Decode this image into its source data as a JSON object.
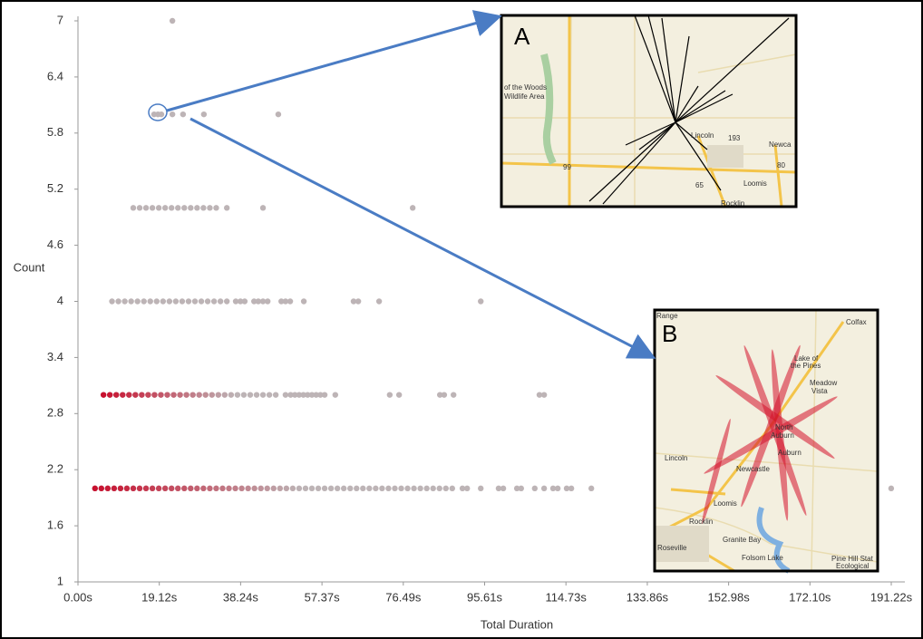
{
  "chart_data": {
    "type": "scatter",
    "x_label": "Total Duration",
    "y_label": "Count",
    "xlim": [
      0,
      191.22
    ],
    "ylim": [
      1,
      7
    ],
    "xticks": [
      {
        "value": 0,
        "label": "0.00s"
      },
      {
        "value": 19.12,
        "label": "19.12s"
      },
      {
        "value": 38.24,
        "label": "38.24s"
      },
      {
        "value": 57.37,
        "label": "57.37s"
      },
      {
        "value": 76.49,
        "label": "76.49s"
      },
      {
        "value": 95.61,
        "label": "95.61s"
      },
      {
        "value": 114.73,
        "label": "114.73s"
      },
      {
        "value": 133.86,
        "label": "133.86s"
      },
      {
        "value": 152.98,
        "label": "152.98s"
      },
      {
        "value": 172.1,
        "label": "172.10s"
      },
      {
        "value": 191.22,
        "label": "191.22s"
      }
    ],
    "yticks": [
      1,
      1.6,
      2.2,
      2.8,
      3.4,
      4,
      4.6,
      5.2,
      5.8,
      6.4,
      7
    ],
    "color": "#bdb4b6",
    "accent_color": "#c8102e",
    "series": [
      {
        "accent": true,
        "x": [
          4,
          5.5,
          7,
          8.5,
          10,
          11.5,
          13,
          14.5,
          16,
          17.5,
          19,
          20.5,
          22,
          23.5,
          25,
          26.5,
          28,
          29.5,
          31,
          32.5,
          34,
          35.5,
          37,
          38.5,
          40,
          41.5,
          43,
          44.5,
          46,
          47.5,
          49,
          50.5,
          52,
          53.5,
          55,
          56.5,
          58,
          59.5,
          61,
          62.5,
          64,
          65.5,
          67,
          68.5,
          70,
          71.5,
          73,
          74.5,
          76,
          77.5,
          79,
          80.5,
          82,
          83.5,
          85,
          86.5,
          88,
          90.4,
          91.5,
          94.7,
          98.9,
          100,
          103.2,
          104.2,
          107.4,
          109.6,
          111.7,
          112.8,
          114.9,
          116,
          120.7,
          191.2
        ],
        "values": [
          2,
          2,
          2,
          2,
          2,
          2,
          2,
          2,
          2,
          2,
          2,
          2,
          2,
          2,
          2,
          2,
          2,
          2,
          2,
          2,
          2,
          2,
          2,
          2,
          2,
          2,
          2,
          2,
          2,
          2,
          2,
          2,
          2,
          2,
          2,
          2,
          2,
          2,
          2,
          2,
          2,
          2,
          2,
          2,
          2,
          2,
          2,
          2,
          2,
          2,
          2,
          2,
          2,
          2,
          2,
          2,
          2,
          2,
          2,
          2,
          2,
          2,
          2,
          2,
          2,
          2,
          2,
          2,
          2,
          2,
          2,
          2
        ]
      },
      {
        "accent": true,
        "x": [
          6,
          7.5,
          9,
          10.5,
          12,
          13.5,
          15,
          16.5,
          18,
          19.5,
          21,
          22.5,
          24,
          25.5,
          27,
          28.5,
          30,
          31.5,
          33,
          34.5,
          36,
          37.5,
          39,
          40.5,
          42,
          43.5,
          45,
          46.5,
          48.8,
          50,
          51,
          52,
          53,
          54,
          55,
          56,
          57,
          58,
          60.5,
          73.3,
          75.5,
          85.1,
          86.1,
          88.3,
          108.5,
          109.6
        ],
        "values": [
          3,
          3,
          3,
          3,
          3,
          3,
          3,
          3,
          3,
          3,
          3,
          3,
          3,
          3,
          3,
          3,
          3,
          3,
          3,
          3,
          3,
          3,
          3,
          3,
          3,
          3,
          3,
          3,
          3,
          3,
          3,
          3,
          3,
          3,
          3,
          3,
          3,
          3,
          3,
          3,
          3,
          3,
          3,
          3,
          3,
          3
        ]
      },
      {
        "accent": false,
        "x": [
          8,
          9.5,
          11,
          12.5,
          14,
          15.5,
          17,
          18.5,
          20,
          21.5,
          23,
          24.5,
          26,
          27.5,
          29,
          30.5,
          32,
          33.5,
          35,
          37.1,
          38.2,
          39.2,
          41.4,
          42.4,
          43.5,
          44.6,
          47.8,
          48.8,
          49.9,
          53.1,
          64.8,
          65.9,
          70.8,
          94.7
        ],
        "values": [
          4,
          4,
          4,
          4,
          4,
          4,
          4,
          4,
          4,
          4,
          4,
          4,
          4,
          4,
          4,
          4,
          4,
          4,
          4,
          4,
          4,
          4,
          4,
          4,
          4,
          4,
          4,
          4,
          4,
          4,
          4,
          4,
          4,
          4
        ]
      },
      {
        "accent": false,
        "x": [
          13,
          14.5,
          16,
          17.5,
          19,
          20.5,
          22,
          23.5,
          25,
          26.5,
          28,
          29.5,
          31,
          32.5,
          35,
          43.5,
          78.7
        ],
        "values": [
          5,
          5,
          5,
          5,
          5,
          5,
          5,
          5,
          5,
          5,
          5,
          5,
          5,
          5,
          5,
          5,
          5
        ]
      },
      {
        "accent": false,
        "x": [
          17.9,
          18.8,
          19.6,
          22.2,
          24.7,
          29.6,
          47.1
        ],
        "values": [
          6,
          6,
          6,
          6,
          6,
          6,
          6
        ]
      },
      {
        "accent": false,
        "x": [
          22.2
        ],
        "values": [
          7
        ]
      }
    ]
  },
  "insets": [
    {
      "label": "A",
      "places": [
        "of the Woods",
        "Wildlife Area",
        "Lincoln",
        "Newca",
        "Loomis",
        "Rocklin",
        "193",
        "99",
        "65",
        "80"
      ]
    },
    {
      "label": "B",
      "places": [
        "Colfax",
        "Lake of",
        "the Pines",
        "Meadow",
        "Vista",
        "North",
        "Auburn",
        "Auburn",
        "Newcastle",
        "Lincoln",
        "Loomis",
        "Rocklin",
        "Granite Bay",
        "Roseville",
        "Pine Hill Stat",
        "Ecological",
        "Folsom Lake",
        "Range"
      ]
    }
  ]
}
